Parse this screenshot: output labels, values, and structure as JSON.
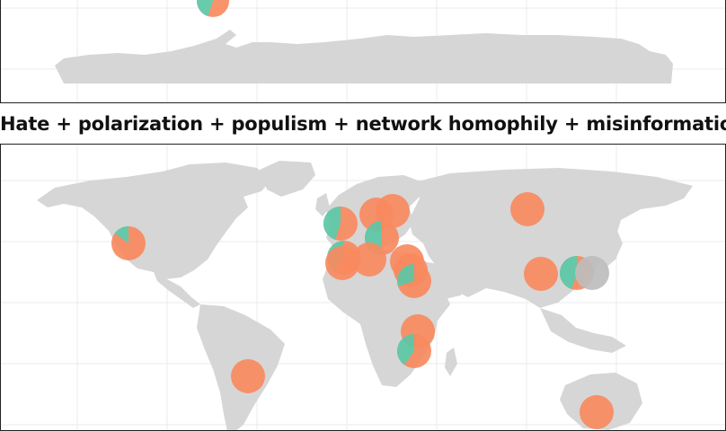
{
  "title": "Hate + polarization + populism + network homophily + misinformation",
  "colors": {
    "orange": "#f98a5f",
    "teal": "#5cc7a6",
    "grey": "#bdbdbd",
    "land": "#d6d6d6"
  },
  "top_markers": [
    {
      "name": "top-marker-left",
      "orange": 0.55,
      "teal": 0.45
    }
  ],
  "bottom_markers": [
    {
      "name": "marker-us-west",
      "orange": 0.85,
      "teal": 0.15
    },
    {
      "name": "marker-brazil",
      "orange": 1.0,
      "teal": 0.0
    },
    {
      "name": "marker-uk",
      "orange": 0.55,
      "teal": 0.45
    },
    {
      "name": "marker-scandinavia",
      "orange": 1.0,
      "teal": 0.0
    },
    {
      "name": "marker-baltic",
      "orange": 1.0,
      "teal": 0.0
    },
    {
      "name": "marker-central-europe",
      "orange": 0.5,
      "teal": 0.5
    },
    {
      "name": "marker-france",
      "orange": 0.6,
      "teal": 0.4
    },
    {
      "name": "marker-iberia",
      "orange": 1.0,
      "teal": 0.0
    },
    {
      "name": "marker-mediterranean",
      "orange": 1.0,
      "teal": 0.0
    },
    {
      "name": "marker-balkans",
      "orange": 1.0,
      "teal": 0.0
    },
    {
      "name": "marker-turkey",
      "orange": 1.0,
      "teal": 0.0
    },
    {
      "name": "marker-levant",
      "orange": 0.7,
      "teal": 0.3
    },
    {
      "name": "marker-russia",
      "orange": 1.0,
      "teal": 0.0
    },
    {
      "name": "marker-china",
      "orange": 1.0,
      "teal": 0.0
    },
    {
      "name": "marker-korea",
      "orange": 0.55,
      "teal": 0.45
    },
    {
      "name": "marker-japan",
      "orange": 0.0,
      "teal": 0.0
    },
    {
      "name": "marker-ethiopia",
      "orange": 1.0,
      "teal": 0.0
    },
    {
      "name": "marker-kenya",
      "orange": 0.6,
      "teal": 0.4
    },
    {
      "name": "marker-australia",
      "orange": 1.0,
      "teal": 0.0
    }
  ]
}
